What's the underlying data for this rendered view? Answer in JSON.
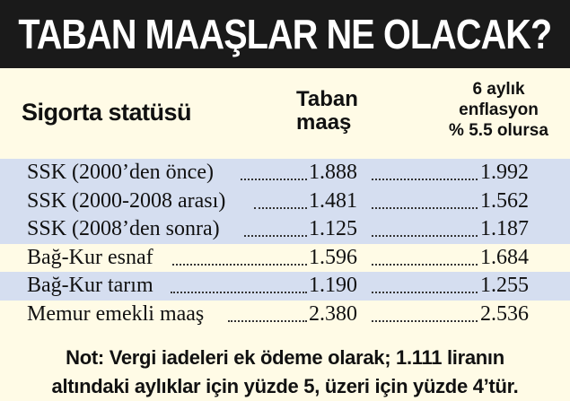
{
  "title": "TABAN MAAŞLAR NE OLACAK?",
  "headers": {
    "status": "Sigorta statüsü",
    "base_line1": "Taban",
    "base_line2": "maaş",
    "infl_line1": "6 aylık",
    "infl_line2": "enflasyon",
    "infl_line3": "% 5.5 olursa"
  },
  "rows": [
    {
      "name": "SSK (2000’den önce)",
      "base": "1.888",
      "projected": "1.992"
    },
    {
      "name": "SSK (2000-2008 arası)",
      "base": "1.481",
      "projected": "1.562"
    },
    {
      "name": "SSK (2008’den sonra)",
      "base": "1.125",
      "projected": "1.187"
    },
    {
      "name": "Bağ-Kur esnaf",
      "base": "1.596",
      "projected": "1.684"
    },
    {
      "name": "Bağ-Kur tarım",
      "base": "1.190",
      "projected": "1.255"
    },
    {
      "name": "Memur emekli maaş",
      "base": "2.380",
      "projected": "2.536"
    }
  ],
  "note_line1": "Not: Vergi iadeleri ek ödeme olarak; 1.111 liranın",
  "note_line2": "altındaki aylıklar için yüzde 5, üzeri için yüzde 4’tür.",
  "colors": {
    "banner": "#1a1a1a",
    "row_shade": "#d5def0",
    "background": "#fffbe6"
  }
}
